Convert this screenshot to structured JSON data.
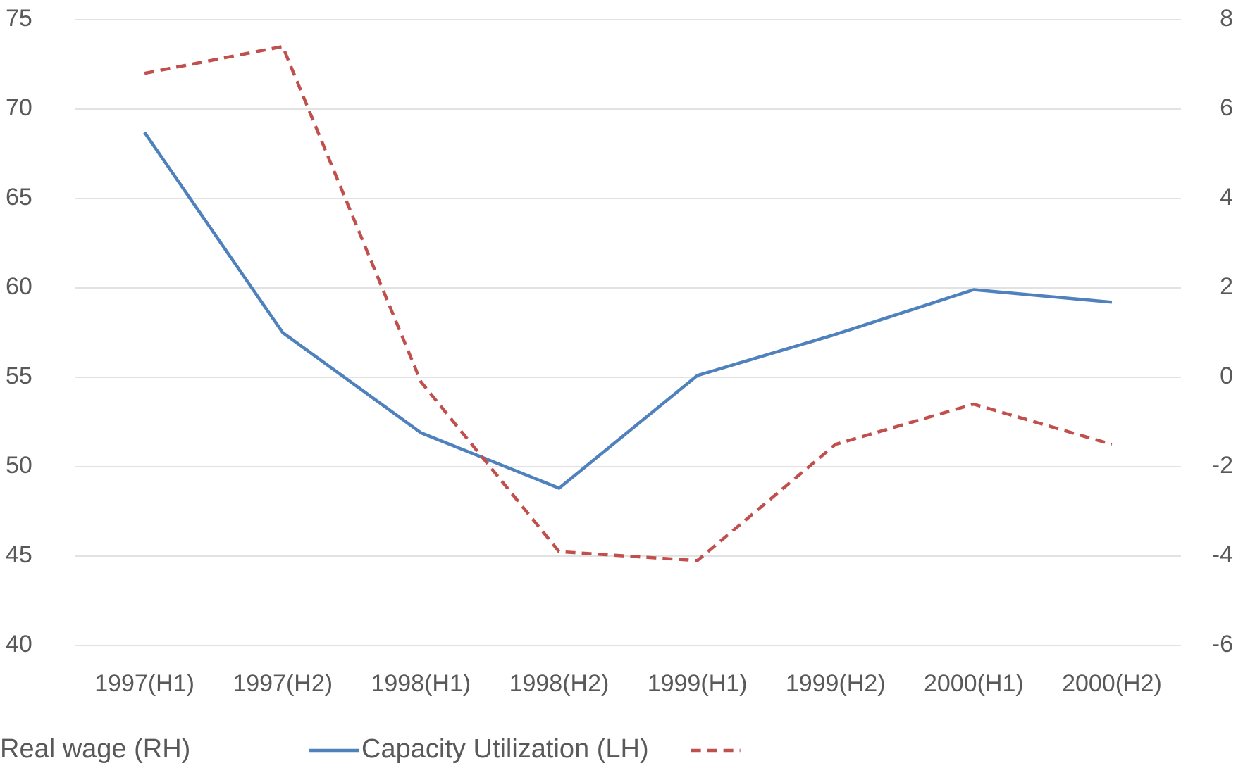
{
  "chart_data": {
    "type": "line",
    "categories": [
      "1997(H1)",
      "1997(H2)",
      "1998(H1)",
      "1998(H2)",
      "1999(H1)",
      "1999(H2)",
      "2000(H1)",
      "2000(H2)"
    ],
    "series": [
      {
        "name": "Capacity Utilization (LH)",
        "color": "#4f81bd",
        "dash": false,
        "values": [
          68.7,
          57.5,
          51.9,
          48.8,
          55.1,
          57.4,
          59.9,
          59.2
        ]
      },
      {
        "name": "Real wage (RH)",
        "color": "#c0504d",
        "dash": true,
        "axis": "y2",
        "values": [
          6.8,
          7.4,
          -0.1,
          -3.9,
          -4.1,
          -1.5,
          -0.6,
          -1.5
        ]
      }
    ],
    "ylim": [
      40,
      75
    ],
    "yticks": [
      40,
      45,
      50,
      55,
      60,
      65,
      70,
      75
    ],
    "y2lim": [
      -6,
      8
    ],
    "y2ticks": [
      -6,
      -4,
      -2,
      0,
      2,
      4,
      6,
      8
    ],
    "grid": true,
    "legend": "bottom"
  }
}
